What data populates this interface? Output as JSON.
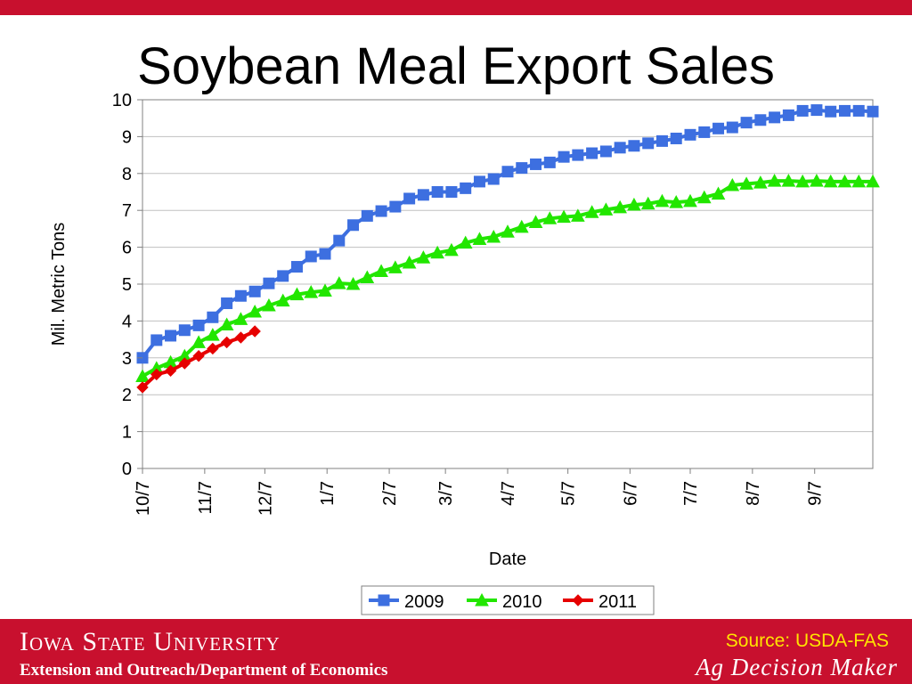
{
  "slide": {
    "title": "Soybean Meal Export Sales"
  },
  "footer": {
    "university": "Iowa State University",
    "department": "Extension and Outreach/Department of Economics",
    "source": "Source: USDA-FAS",
    "brand": "Ag Decision Maker"
  },
  "colors": {
    "accent_red": "#c8102e",
    "source_yellow": "#ffe400",
    "series_2009": "#3d6fe0",
    "series_2010": "#22e600",
    "series_2011": "#e60000"
  },
  "chart_data": {
    "type": "line",
    "title": "",
    "xlabel": "Date",
    "ylabel": "Mil. Metric Tons",
    "ylim": [
      0,
      10
    ],
    "yticks": [
      0,
      1,
      2,
      3,
      4,
      5,
      6,
      7,
      8,
      9,
      10
    ],
    "x_tick_labels": [
      "10/7",
      "11/7",
      "12/7",
      "1/7",
      "2/7",
      "3/7",
      "4/7",
      "5/7",
      "6/7",
      "7/7",
      "8/7",
      "9/7"
    ],
    "x_tick_weeks": [
      0,
      4.43,
      8.71,
      13.14,
      17.57,
      21.57,
      26,
      30.29,
      34.71,
      39,
      43.43,
      47.86
    ],
    "x_week_range": [
      0,
      52
    ],
    "grid": "horizontal",
    "legend": "bottom-center",
    "series": [
      {
        "name": "2009",
        "marker": "square",
        "color": "#3d6fe0",
        "values": [
          3.0,
          3.48,
          3.6,
          3.75,
          3.88,
          4.1,
          4.48,
          4.68,
          4.8,
          5.02,
          5.22,
          5.47,
          5.75,
          5.82,
          6.18,
          6.6,
          6.85,
          6.98,
          7.1,
          7.32,
          7.42,
          7.5,
          7.5,
          7.6,
          7.78,
          7.85,
          8.05,
          8.15,
          8.25,
          8.3,
          8.45,
          8.5,
          8.55,
          8.6,
          8.7,
          8.75,
          8.82,
          8.88,
          8.95,
          9.05,
          9.12,
          9.22,
          9.25,
          9.38,
          9.45,
          9.52,
          9.58,
          9.7,
          9.72,
          9.68,
          9.7,
          9.7,
          9.68
        ]
      },
      {
        "name": "2010",
        "marker": "triangle",
        "color": "#22e600",
        "values": [
          2.5,
          2.72,
          2.88,
          3.05,
          3.42,
          3.62,
          3.9,
          4.05,
          4.25,
          4.42,
          4.55,
          4.72,
          4.78,
          4.82,
          5.02,
          5.0,
          5.18,
          5.35,
          5.45,
          5.58,
          5.72,
          5.85,
          5.92,
          6.12,
          6.22,
          6.28,
          6.42,
          6.55,
          6.68,
          6.78,
          6.82,
          6.85,
          6.95,
          7.02,
          7.08,
          7.15,
          7.18,
          7.25,
          7.22,
          7.25,
          7.35,
          7.45,
          7.68,
          7.72,
          7.75,
          7.8,
          7.8,
          7.78,
          7.8,
          7.78,
          7.78,
          7.78,
          7.78
        ]
      },
      {
        "name": "2011",
        "marker": "diamond",
        "color": "#e60000",
        "values": [
          2.2,
          2.55,
          2.65,
          2.85,
          3.05,
          3.25,
          3.42,
          3.55,
          3.72
        ]
      }
    ]
  }
}
